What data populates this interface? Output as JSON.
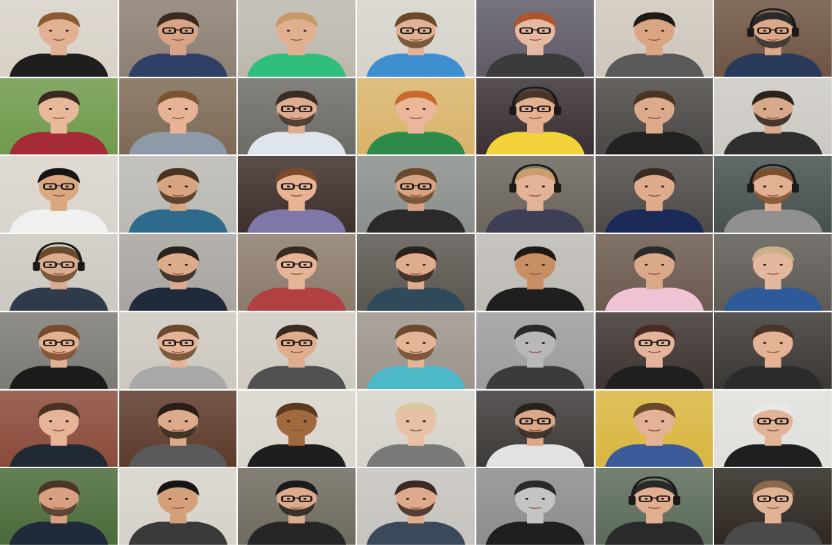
{
  "mosaic": {
    "rows": 7,
    "columns": 7,
    "tiles": [
      {
        "bg": "#d8d2c8",
        "skin": "#e2b193",
        "hair": "#8a5a35",
        "shirt": "#1e1e1e",
        "glasses": false,
        "headphones": false,
        "beard": false
      },
      {
        "bg": "#8c7f73",
        "skin": "#d9a486",
        "hair": "#3b2a1f",
        "shirt": "#2f3f66",
        "glasses": true,
        "headphones": false,
        "beard": false
      },
      {
        "bg": "#bcb8ae",
        "skin": "#e1b093",
        "hair": "#c69a65",
        "shirt": "#2fbf7a",
        "glasses": false,
        "headphones": false,
        "beard": false
      },
      {
        "bg": "#d6d3cb",
        "skin": "#e1b295",
        "hair": "#6b4a2c",
        "shirt": "#3d8fd0",
        "glasses": true,
        "headphones": false,
        "beard": true
      },
      {
        "bg": "#5f5a66",
        "skin": "#e6b9a2",
        "hair": "#b0552b",
        "shirt": "#3b3b3b",
        "glasses": true,
        "headphones": false,
        "beard": false
      },
      {
        "bg": "#cfc7bc",
        "skin": "#d9a583",
        "hair": "#1e1a16",
        "shirt": "#5a5a5a",
        "glasses": false,
        "headphones": false,
        "beard": false
      },
      {
        "bg": "#6e5443",
        "skin": "#dba889",
        "hair": "#2a2a2a",
        "shirt": "#2a3a5a",
        "glasses": true,
        "headphones": true,
        "beard": true
      },
      {
        "bg": "#6f9a4c",
        "skin": "#e7b89a",
        "hair": "#3a2a22",
        "shirt": "#a52b36",
        "glasses": false,
        "headphones": false,
        "beard": false
      },
      {
        "bg": "#7c6a55",
        "skin": "#e6b396",
        "hair": "#7c5431",
        "shirt": "#8e9aa8",
        "glasses": false,
        "headphones": false,
        "beard": false
      },
      {
        "bg": "#6d6b66",
        "skin": "#dfae90",
        "hair": "#3a2d24",
        "shirt": "#dfe5ea",
        "glasses": true,
        "headphones": false,
        "beard": true
      },
      {
        "bg": "#d9b36a",
        "skin": "#eab79a",
        "hair": "#c86a2e",
        "shirt": "#2e8a4a",
        "glasses": false,
        "headphones": false,
        "beard": false
      },
      {
        "bg": "#3a3033",
        "skin": "#e3b092",
        "hair": "#4a3526",
        "shirt": "#f2d33a",
        "glasses": true,
        "headphones": true,
        "beard": false
      },
      {
        "bg": "#4a4744",
        "skin": "#dcaa8c",
        "hair": "#4b3322",
        "shirt": "#222222",
        "glasses": false,
        "headphones": false,
        "beard": false
      },
      {
        "bg": "#ccc9c3",
        "skin": "#d9a98b",
        "hair": "#2c231d",
        "shirt": "#2f2f2f",
        "glasses": false,
        "headphones": false,
        "beard": true
      },
      {
        "bg": "#d9d4cc",
        "skin": "#d9a87f",
        "hair": "#151515",
        "shirt": "#f0f0f0",
        "glasses": true,
        "headphones": false,
        "beard": false
      },
      {
        "bg": "#b9b8b2",
        "skin": "#d8a583",
        "hair": "#4b3322",
        "shirt": "#2d6a8c",
        "glasses": false,
        "headphones": false,
        "beard": true
      },
      {
        "bg": "#3d2f2a",
        "skin": "#e6b395",
        "hair": "#7c4a2a",
        "shirt": "#7f77a8",
        "glasses": true,
        "headphones": false,
        "beard": false
      },
      {
        "bg": "#8a8f8c",
        "skin": "#d7a383",
        "hair": "#6a4a2c",
        "shirt": "#2a2a2a",
        "glasses": true,
        "headphones": false,
        "beard": true
      },
      {
        "bg": "#6a645c",
        "skin": "#e4b397",
        "hair": "#c9a06a",
        "shirt": "#3c3f55",
        "glasses": false,
        "headphones": true,
        "beard": false
      },
      {
        "bg": "#4e4a47",
        "skin": "#deab8d",
        "hair": "#3a2c22",
        "shirt": "#1c2a5a",
        "glasses": false,
        "headphones": false,
        "beard": false
      },
      {
        "bg": "#46504f",
        "skin": "#e2b193",
        "hair": "#7a4f2c",
        "shirt": "#8f8f8f",
        "glasses": false,
        "headphones": true,
        "beard": true
      },
      {
        "bg": "#ccc8c1",
        "skin": "#dcac8e",
        "hair": "#6b4a2c",
        "shirt": "#2f3a4a",
        "glasses": true,
        "headphones": true,
        "beard": true
      },
      {
        "bg": "#a8a4a0",
        "skin": "#dcab8c",
        "hair": "#2a221c",
        "shirt": "#1f2a3a",
        "glasses": false,
        "headphones": false,
        "beard": true
      },
      {
        "bg": "#8b7b6b",
        "skin": "#e6b597",
        "hair": "#3b2a1f",
        "shirt": "#b14040",
        "glasses": true,
        "headphones": false,
        "beard": false
      },
      {
        "bg": "#5b5650",
        "skin": "#dfac8d",
        "hair": "#2b2019",
        "shirt": "#2f4a5a",
        "glasses": false,
        "headphones": false,
        "beard": true
      },
      {
        "bg": "#bdbab4",
        "skin": "#c98f64",
        "hair": "#1e1a16",
        "shirt": "#1f1f1f",
        "glasses": false,
        "headphones": false,
        "beard": false
      },
      {
        "bg": "#6b5a4e",
        "skin": "#d9a98a",
        "hair": "#2a2a2a",
        "shirt": "#f0c3d4",
        "glasses": false,
        "headphones": false,
        "beard": false
      },
      {
        "bg": "#5e5a55",
        "skin": "#e4b89e",
        "hair": "#c9b08a",
        "shirt": "#2f5a9a",
        "glasses": false,
        "headphones": false,
        "beard": false
      },
      {
        "bg": "#7c7a74",
        "skin": "#e1b191",
        "hair": "#7a4a2c",
        "shirt": "#1b1b1b",
        "glasses": true,
        "headphones": false,
        "beard": true
      },
      {
        "bg": "#cdc8bf",
        "skin": "#e3b497",
        "hair": "#6b4a2c",
        "shirt": "#a8a8a8",
        "glasses": true,
        "headphones": false,
        "beard": true
      },
      {
        "bg": "#cfcac2",
        "skin": "#dfad8e",
        "hair": "#3a2a22",
        "shirt": "#505050",
        "glasses": true,
        "headphones": false,
        "beard": false
      },
      {
        "bg": "#9b948c",
        "skin": "#e5b497",
        "hair": "#6b4a2c",
        "shirt": "#4cb8c8",
        "glasses": false,
        "headphones": false,
        "beard": true
      },
      {
        "bg": "#9c9c9c",
        "skin": "#b8b8b8",
        "hair": "#2a2a2a",
        "shirt": "#3b3b3b",
        "glasses": false,
        "headphones": false,
        "beard": false
      },
      {
        "bg": "#3e3431",
        "skin": "#e3b49a",
        "hair": "#4a2a22",
        "shirt": "#1f1f1f",
        "glasses": true,
        "headphones": false,
        "beard": false
      },
      {
        "bg": "#3b3734",
        "skin": "#e4b295",
        "hair": "#4a3526",
        "shirt": "#2b2b2b",
        "glasses": false,
        "headphones": false,
        "beard": false
      },
      {
        "bg": "#8a4a3a",
        "skin": "#e6b497",
        "hair": "#4b3322",
        "shirt": "#1f2a35",
        "glasses": false,
        "headphones": false,
        "beard": false
      },
      {
        "bg": "#5c3a2a",
        "skin": "#dcab8c",
        "hair": "#2a1e16",
        "shirt": "#5a5a5a",
        "glasses": false,
        "headphones": false,
        "beard": true
      },
      {
        "bg": "#d9d4cc",
        "skin": "#a0693e",
        "hair": "#5c3a1f",
        "shirt": "#1e1e1e",
        "glasses": false,
        "headphones": false,
        "beard": false
      },
      {
        "bg": "#d6d2cb",
        "skin": "#e8c0a6",
        "hair": "#d9c69a",
        "shirt": "#7a7a7a",
        "glasses": false,
        "headphones": false,
        "beard": false
      },
      {
        "bg": "#3d3a38",
        "skin": "#dba989",
        "hair": "#2a221c",
        "shirt": "#e2e2e2",
        "glasses": true,
        "headphones": false,
        "beard": true
      },
      {
        "bg": "#d9b640",
        "skin": "#e4b295",
        "hair": "#6b4a2c",
        "shirt": "#3a5a9a",
        "glasses": false,
        "headphones": false,
        "beard": false
      },
      {
        "bg": "#e0dfdb",
        "skin": "#e2b497",
        "hair": "#e9e9e9",
        "shirt": "#1f1f1f",
        "glasses": true,
        "headphones": false,
        "beard": false
      },
      {
        "bg": "#4a6a3a",
        "skin": "#d7a081",
        "hair": "#4a3526",
        "shirt": "#1f2a3a",
        "glasses": false,
        "headphones": false,
        "beard": true
      },
      {
        "bg": "#d6d2ca",
        "skin": "#d4a07a",
        "hair": "#151515",
        "shirt": "#3a3a3a",
        "glasses": false,
        "headphones": false,
        "beard": false
      },
      {
        "bg": "#6f6a5f",
        "skin": "#dcab8e",
        "hair": "#1a1a1a",
        "shirt": "#262626",
        "glasses": true,
        "headphones": false,
        "beard": true
      },
      {
        "bg": "#c6c3be",
        "skin": "#ddaa8b",
        "hair": "#3a2a22",
        "shirt": "#3a4a5a",
        "glasses": false,
        "headphones": false,
        "beard": true
      },
      {
        "bg": "#8c8c8c",
        "skin": "#c4c4c4",
        "hair": "#2a2a2a",
        "shirt": "#1f1f1f",
        "glasses": false,
        "headphones": false,
        "beard": false
      },
      {
        "bg": "#5b6a5a",
        "skin": "#e1ae90",
        "hair": "#2a2a2a",
        "shirt": "#2a2a2a",
        "glasses": true,
        "headphones": true,
        "beard": false
      },
      {
        "bg": "#2e2722",
        "skin": "#e2b294",
        "hair": "#8a6a4a",
        "shirt": "#4a4a4a",
        "glasses": true,
        "headphones": false,
        "beard": false
      }
    ]
  }
}
